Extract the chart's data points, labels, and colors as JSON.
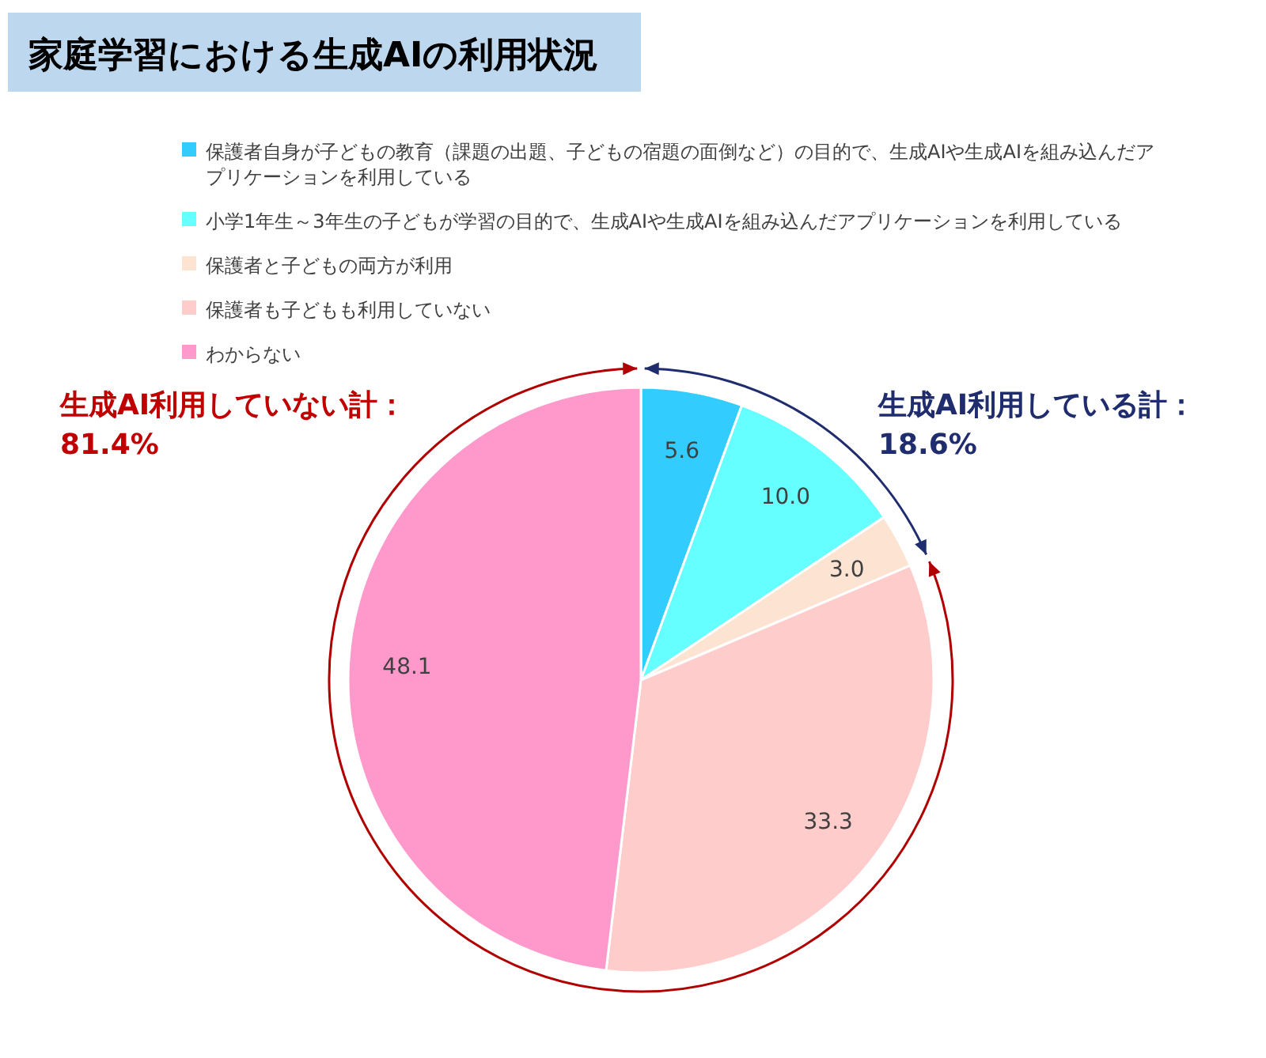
{
  "chart_data": {
    "type": "pie",
    "title": "家庭学習における生成AIの利用状況",
    "categories": [
      "保護者自身が子どもの教育（課題の出題、子どもの宿題の面倒など）の目的で、生成AIや生成AIを組み込んだアプリケーションを利用している",
      "小学1年生～3年生の子どもが学習の目的で、生成AIや生成AIを組み込んだアプリケーションを利用している",
      "保護者と子どもの両方が利用",
      "保護者も子どもも利用していない",
      "わからない"
    ],
    "values": [
      5.6,
      10.0,
      3.0,
      33.3,
      48.1
    ],
    "colors": [
      "#33ccff",
      "#66ffff",
      "#fde4d2",
      "#ffcccc",
      "#ff99cc"
    ],
    "value_labels": [
      "5.6",
      "10.0",
      "3.0",
      "33.3",
      "48.1"
    ],
    "legend": "top",
    "annotations": [
      "生成AI利用している計：\n18.6%",
      "生成AI利用していない計：\n81.4%"
    ]
  }
}
